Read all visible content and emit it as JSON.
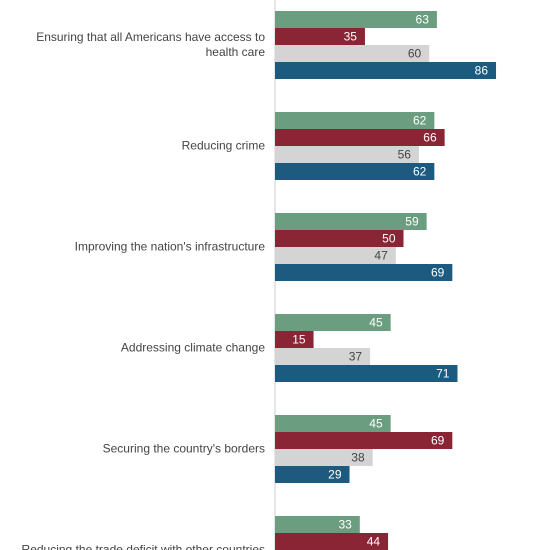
{
  "chart_data": {
    "type": "hbar",
    "categories": [
      "Ensuring that all Americans have access to health care",
      "Reducing crime",
      "Improving the nation's infrastructure",
      "Addressing climate change",
      "Securing the country's borders",
      "Reducing the trade deficit with other countries"
    ],
    "series": [
      {
        "color": "#6b9e80",
        "values": [
          63,
          62,
          59,
          45,
          45,
          33
        ]
      },
      {
        "color": "#8a2536",
        "values": [
          35,
          66,
          50,
          15,
          69,
          44
        ]
      },
      {
        "color": "#d4d4d4",
        "values": [
          60,
          56,
          47,
          37,
          38,
          null
        ]
      },
      {
        "color": "#1d5a80",
        "values": [
          86,
          62,
          69,
          71,
          29,
          null
        ]
      }
    ],
    "xlim": [
      0,
      107
    ]
  }
}
